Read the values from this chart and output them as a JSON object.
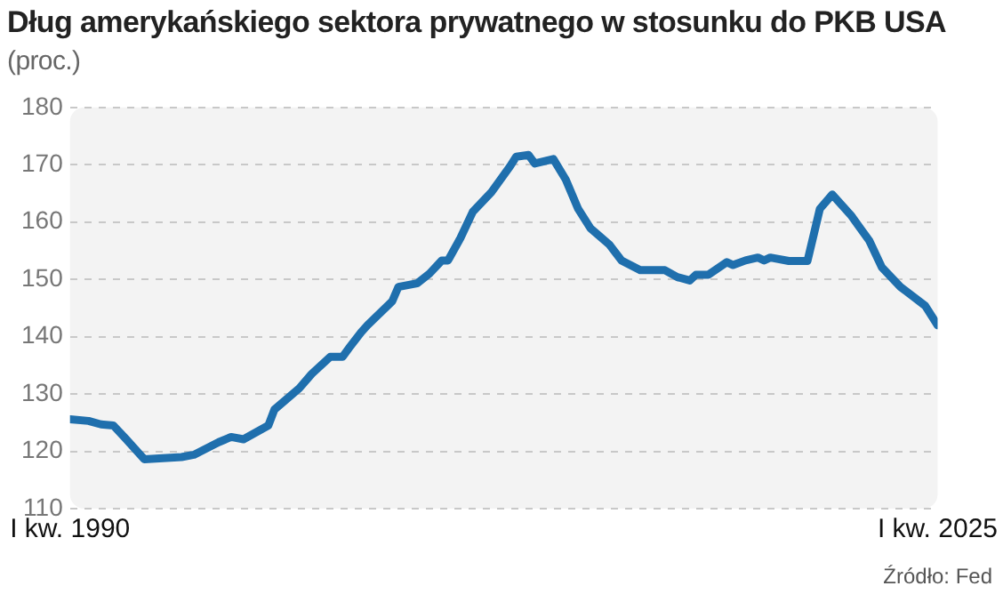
{
  "chart_data": {
    "type": "line",
    "title": "Dług amerykańskiego sektora prywatnego w stosunku do PKB USA",
    "subtitle": "(proc.)",
    "x": [
      1990,
      1990.75,
      1991.25,
      1991.75,
      1992.25,
      1993,
      1993.75,
      1994.5,
      1995,
      1996,
      1996.5,
      1997,
      1998,
      1998.25,
      1999.25,
      1999.75,
      2000.5,
      2001,
      2001.25,
      2001.75,
      2002,
      2003,
      2003.25,
      2004,
      2004.5,
      2005,
      2005.25,
      2005.75,
      2006.25,
      2007,
      2007.75,
      2008,
      2008.5,
      2008.75,
      2009.5,
      2010,
      2010.5,
      2011,
      2011.75,
      2012.25,
      2013,
      2014,
      2014.5,
      2015,
      2015.25,
      2015.75,
      2016.5,
      2016.75,
      2017.25,
      2017.75,
      2018,
      2018.25,
      2019,
      2019.75,
      2020.25,
      2020.75,
      2021.5,
      2022.25,
      2022.75,
      2023.5,
      2024.5,
      2025
    ],
    "series": [
      {
        "color": "#1f6fad",
        "values": [
          125.6,
          125.3,
          124.7,
          124.5,
          122.2,
          118.6,
          118.8,
          119.0,
          119.4,
          121.6,
          122.5,
          122.1,
          124.5,
          127.3,
          131.0,
          133.5,
          136.5,
          136.5,
          138.0,
          140.8,
          142.0,
          146.2,
          148.7,
          149.3,
          151.0,
          153.3,
          153.3,
          157.2,
          161.8,
          165.2,
          169.7,
          171.4,
          171.7,
          170.2,
          171.0,
          167.4,
          162.3,
          158.9,
          156.1,
          153.3,
          151.6,
          151.6,
          150.4,
          149.8,
          150.8,
          150.8,
          153.0,
          152.5,
          153.3,
          153.8,
          153.3,
          153.8,
          153.2,
          153.2,
          162.3,
          164.8,
          161.2,
          156.7,
          152.1,
          148.7,
          145.4,
          142.0
        ]
      }
    ],
    "xlim": [
      1990,
      2025
    ],
    "xticks": [
      {
        "value": 1990,
        "label": "I kw. 1990"
      },
      {
        "value": 2025,
        "label": "I kw. 2025"
      }
    ],
    "ylim": [
      110,
      180
    ],
    "yticks": [
      110,
      120,
      130,
      140,
      150,
      160,
      170,
      180
    ],
    "grid": "y",
    "marker": "none",
    "line_style": "solid",
    "annotations": [
      "Źródło: Fed"
    ]
  }
}
